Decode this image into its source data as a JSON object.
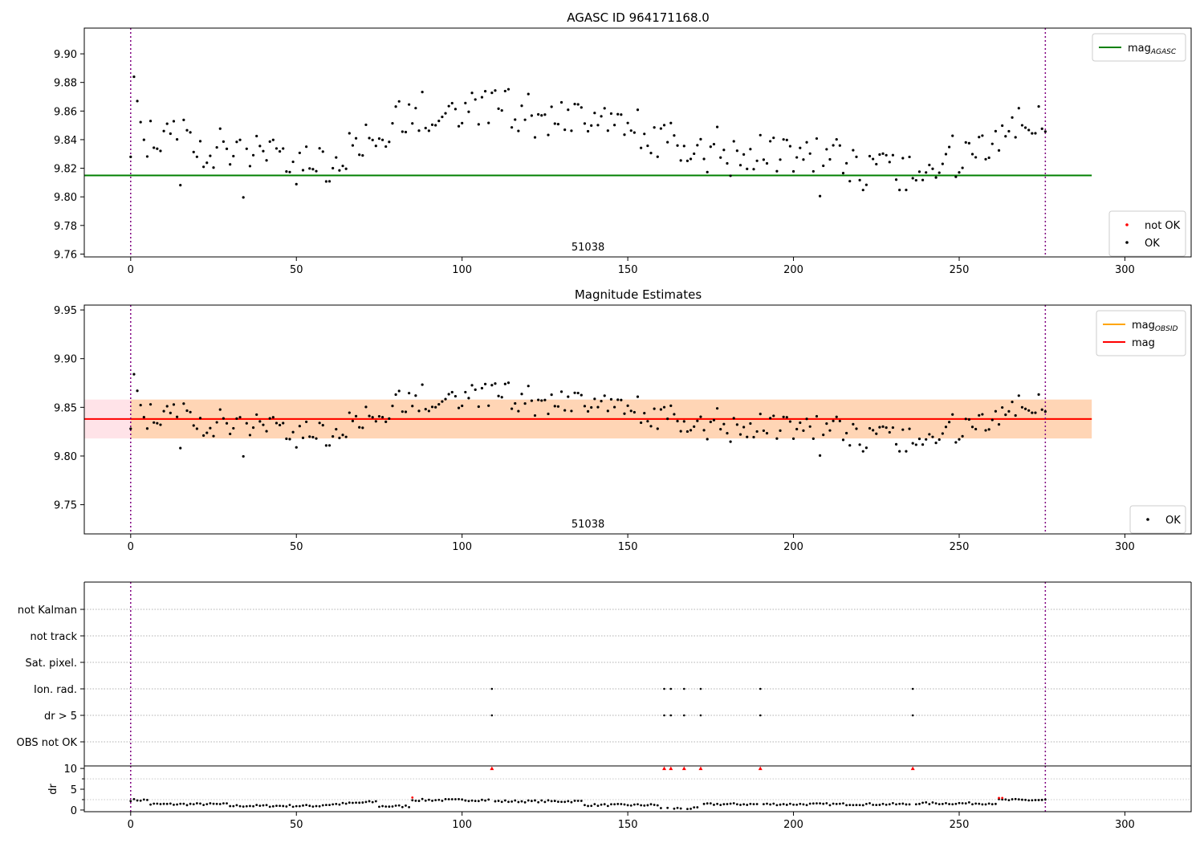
{
  "chart_data": [
    {
      "id": "mag_top",
      "type": "scatter",
      "title": "AGASC ID 964171168.0",
      "xlim": [
        -14,
        320
      ],
      "ylim": [
        9.758,
        9.918
      ],
      "xticks": [
        0,
        50,
        100,
        150,
        200,
        250,
        300
      ],
      "yticks": [
        9.76,
        9.78,
        9.8,
        9.82,
        9.84,
        9.86,
        9.88,
        9.9
      ],
      "ytick_labels": [
        "9.76",
        "9.78",
        "9.80",
        "9.82",
        "9.84",
        "9.86",
        "9.88",
        "9.90"
      ],
      "obsid_label": "51038",
      "obsid_label_x": 138,
      "obs_boundaries": [
        0,
        276
      ],
      "reference_line": {
        "name": "mag_AGASC",
        "value": 9.815,
        "x": [
          -14,
          290
        ],
        "color": "#008000"
      },
      "legend_top": [
        {
          "label": "mag",
          "sub": "AGASC",
          "color": "#008000",
          "kind": "line"
        }
      ],
      "legend_bottom": [
        {
          "label": "not OK",
          "color": "#ff0000",
          "kind": "dot"
        },
        {
          "label": "OK",
          "color": "#000000",
          "kind": "dot"
        }
      ],
      "series_ok_name": "OK",
      "series_not_ok_name": "not OK"
    },
    {
      "id": "mag_mid",
      "type": "scatter",
      "title": "Magnitude Estimates",
      "xlim": [
        -14,
        320
      ],
      "ylim": [
        9.72,
        9.955
      ],
      "xticks": [
        0,
        50,
        100,
        150,
        200,
        250,
        300
      ],
      "yticks": [
        9.75,
        9.8,
        9.85,
        9.9,
        9.95
      ],
      "ytick_labels": [
        "9.75",
        "9.80",
        "9.85",
        "9.90",
        "9.95"
      ],
      "obsid_label": "51038",
      "obsid_label_x": 138,
      "obs_boundaries": [
        0,
        276
      ],
      "mag_line": {
        "value": 9.838,
        "color": "#ff0000"
      },
      "mag_obsid_line": {
        "value": 9.838,
        "color": "#ffa500"
      },
      "bands": [
        {
          "low": 9.818,
          "high": 9.858,
          "x": [
            -14,
            290
          ],
          "color": "#ffc0cb"
        },
        {
          "low": 9.818,
          "high": 9.858,
          "x": [
            0,
            290
          ],
          "color": "#ffa500"
        }
      ],
      "legend_top": [
        {
          "label": "mag",
          "sub": "OBSID",
          "color": "#ffa500",
          "kind": "line"
        },
        {
          "label": "mag",
          "sub": "",
          "color": "#ff0000",
          "kind": "line"
        }
      ],
      "legend_bottom": [
        {
          "label": "OK",
          "color": "#000000",
          "kind": "dot"
        }
      ]
    },
    {
      "id": "flags",
      "type": "scatter",
      "xlim": [
        -14,
        320
      ],
      "categories": [
        "not Kalman",
        "not track",
        "Sat. pixel.",
        "Ion. rad.",
        "dr > 5",
        "OBS not OK"
      ],
      "obs_boundaries": [
        0,
        276
      ],
      "flag_points": {
        "Ion. rad.": [
          109,
          161,
          163,
          167,
          172,
          190,
          236
        ],
        "dr > 5": [
          109,
          161,
          163,
          167,
          172,
          190,
          236
        ]
      }
    },
    {
      "id": "dr",
      "type": "scatter",
      "ylabel": "dr",
      "xlim": [
        -14,
        320
      ],
      "ylim": [
        -0.4,
        10.6
      ],
      "xticks": [
        0,
        50,
        100,
        150,
        200,
        250,
        300
      ],
      "yticks": [
        0,
        5,
        10
      ],
      "minor_yticks": [
        2.5,
        7.5
      ],
      "obs_boundaries": [
        0,
        276
      ],
      "clip_value": 10,
      "high_dr_x": [
        109,
        161,
        163,
        167,
        172,
        190,
        236
      ],
      "red_low_points": [
        [
          85,
          3.0
        ],
        [
          262,
          2.9
        ],
        [
          263,
          2.9
        ]
      ]
    }
  ]
}
